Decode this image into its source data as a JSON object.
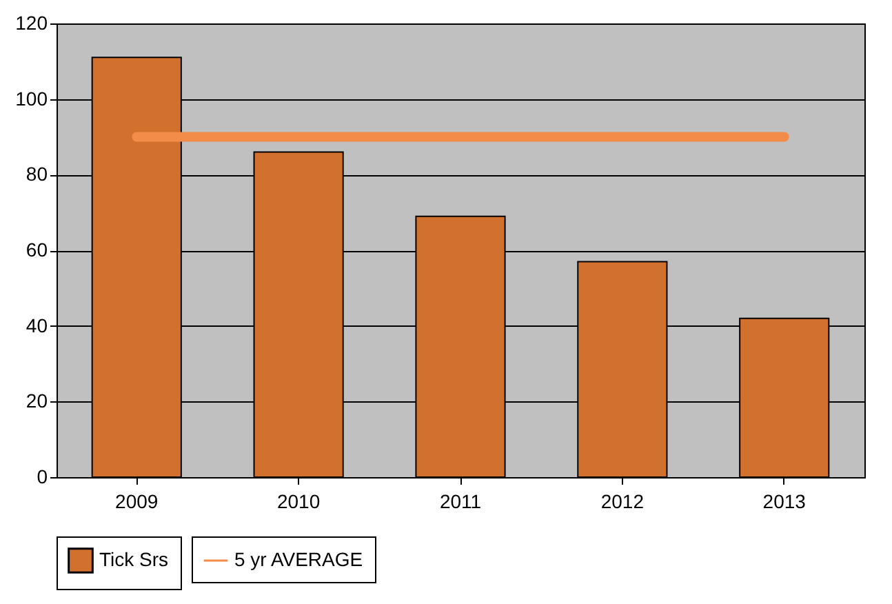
{
  "chart_data": {
    "type": "bar",
    "categories": [
      "2009",
      "2010",
      "2011",
      "2012",
      "2013"
    ],
    "series": [
      {
        "name": "Tick Srs",
        "color": "#d2702d",
        "values": [
          111,
          86,
          69,
          57,
          42
        ]
      },
      {
        "name": "5 yr AVERAGE",
        "type": "line",
        "color": "#f28c48",
        "values": [
          90,
          90,
          90,
          90,
          90
        ]
      }
    ],
    "ylim": [
      0,
      120
    ],
    "yticks": [
      0,
      20,
      40,
      60,
      80,
      100,
      120
    ],
    "grid": "y",
    "legend": "bottom"
  }
}
